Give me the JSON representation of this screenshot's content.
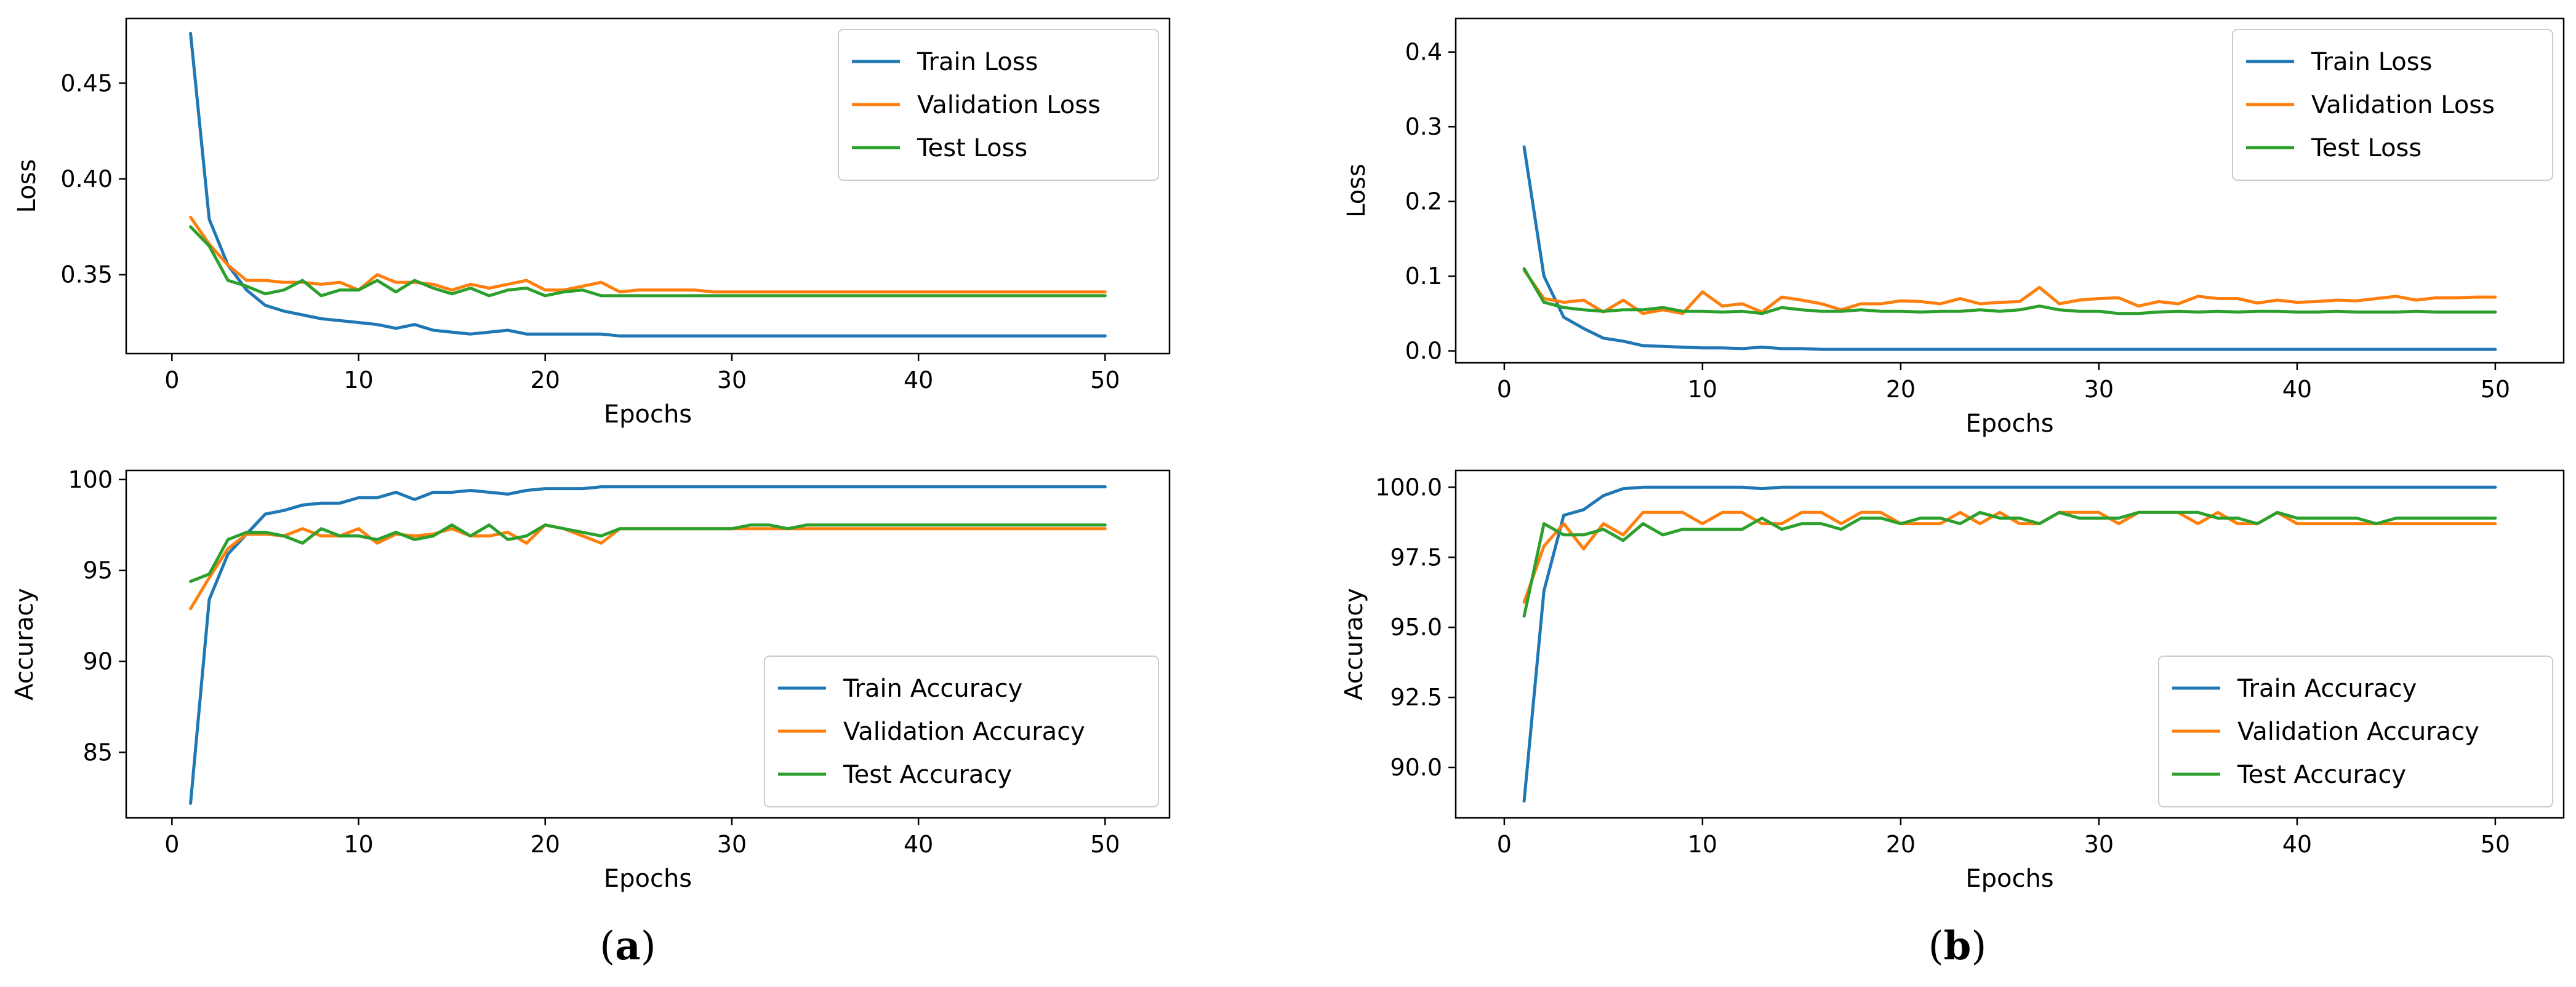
{
  "colors": {
    "train": "#1f77b4",
    "validation": "#ff7f0e",
    "test": "#2ca02c"
  },
  "captions": {
    "a": "a",
    "b": "b"
  },
  "chart_data": [
    {
      "id": "a-loss",
      "type": "line",
      "title": "",
      "xlabel": "Epochs",
      "ylabel": "Loss",
      "xlim": [
        -2.45,
        53.45
      ],
      "ylim": [
        0.3088,
        0.4838
      ],
      "xticks": [
        0,
        10,
        20,
        30,
        40,
        50
      ],
      "yticks": [
        0.35,
        0.4,
        0.45
      ],
      "ytick_labels": [
        "0.35",
        "0.40",
        "0.45"
      ],
      "legend_position": "top-right",
      "x": [
        1,
        2,
        3,
        4,
        5,
        6,
        7,
        8,
        9,
        10,
        11,
        12,
        13,
        14,
        15,
        16,
        17,
        18,
        19,
        20,
        21,
        22,
        23,
        24,
        25,
        26,
        27,
        28,
        29,
        30,
        31,
        32,
        33,
        34,
        35,
        36,
        37,
        38,
        39,
        40,
        41,
        42,
        43,
        44,
        45,
        46,
        47,
        48,
        49,
        50
      ],
      "series": [
        {
          "name": "Train Loss",
          "color_key": "train",
          "values": [
            0.476,
            0.379,
            0.355,
            0.342,
            0.334,
            0.331,
            0.329,
            0.327,
            0.326,
            0.325,
            0.324,
            0.322,
            0.324,
            0.321,
            0.32,
            0.319,
            0.32,
            0.321,
            0.319,
            0.319,
            0.319,
            0.319,
            0.319,
            0.318,
            0.318,
            0.318,
            0.318,
            0.318,
            0.318,
            0.318,
            0.318,
            0.318,
            0.318,
            0.318,
            0.318,
            0.318,
            0.318,
            0.318,
            0.318,
            0.318,
            0.318,
            0.318,
            0.318,
            0.318,
            0.318,
            0.318,
            0.318,
            0.318,
            0.318,
            0.318
          ]
        },
        {
          "name": "Validation Loss",
          "color_key": "validation",
          "values": [
            0.38,
            0.366,
            0.355,
            0.347,
            0.347,
            0.346,
            0.346,
            0.345,
            0.346,
            0.342,
            0.35,
            0.346,
            0.346,
            0.345,
            0.342,
            0.345,
            0.343,
            0.345,
            0.347,
            0.342,
            0.342,
            0.344,
            0.346,
            0.341,
            0.342,
            0.342,
            0.342,
            0.342,
            0.341,
            0.341,
            0.341,
            0.341,
            0.341,
            0.341,
            0.341,
            0.341,
            0.341,
            0.341,
            0.341,
            0.341,
            0.341,
            0.341,
            0.341,
            0.341,
            0.341,
            0.341,
            0.341,
            0.341,
            0.341,
            0.341
          ]
        },
        {
          "name": "Test Loss",
          "color_key": "test",
          "values": [
            0.375,
            0.365,
            0.347,
            0.344,
            0.34,
            0.342,
            0.347,
            0.339,
            0.342,
            0.342,
            0.347,
            0.341,
            0.347,
            0.343,
            0.34,
            0.343,
            0.339,
            0.342,
            0.343,
            0.339,
            0.341,
            0.342,
            0.339,
            0.339,
            0.339,
            0.339,
            0.339,
            0.339,
            0.339,
            0.339,
            0.339,
            0.339,
            0.339,
            0.339,
            0.339,
            0.339,
            0.339,
            0.339,
            0.339,
            0.339,
            0.339,
            0.339,
            0.339,
            0.339,
            0.339,
            0.339,
            0.339,
            0.339,
            0.339,
            0.339
          ]
        }
      ]
    },
    {
      "id": "a-acc",
      "type": "line",
      "title": "",
      "xlabel": "Epochs",
      "ylabel": "Accuracy",
      "xlim": [
        -2.45,
        53.45
      ],
      "ylim": [
        81.4,
        100.5
      ],
      "xticks": [
        0,
        10,
        20,
        30,
        40,
        50
      ],
      "yticks": [
        85,
        90,
        95,
        100
      ],
      "ytick_labels": [
        "85",
        "90",
        "95",
        "100"
      ],
      "legend_position": "bottom-right",
      "x": [
        1,
        2,
        3,
        4,
        5,
        6,
        7,
        8,
        9,
        10,
        11,
        12,
        13,
        14,
        15,
        16,
        17,
        18,
        19,
        20,
        21,
        22,
        23,
        24,
        25,
        26,
        27,
        28,
        29,
        30,
        31,
        32,
        33,
        34,
        35,
        36,
        37,
        38,
        39,
        40,
        41,
        42,
        43,
        44,
        45,
        46,
        47,
        48,
        49,
        50
      ],
      "series": [
        {
          "name": "Train Accuracy",
          "color_key": "train",
          "values": [
            82.2,
            93.4,
            95.9,
            97.0,
            98.1,
            98.3,
            98.6,
            98.7,
            98.7,
            99.0,
            99.0,
            99.3,
            98.9,
            99.3,
            99.3,
            99.4,
            99.3,
            99.2,
            99.4,
            99.5,
            99.5,
            99.5,
            99.6,
            99.6,
            99.6,
            99.6,
            99.6,
            99.6,
            99.6,
            99.6,
            99.6,
            99.6,
            99.6,
            99.6,
            99.6,
            99.6,
            99.6,
            99.6,
            99.6,
            99.6,
            99.6,
            99.6,
            99.6,
            99.6,
            99.6,
            99.6,
            99.6,
            99.6,
            99.6,
            99.6
          ]
        },
        {
          "name": "Validation Accuracy",
          "color_key": "validation",
          "values": [
            92.9,
            94.6,
            96.2,
            97.0,
            97.0,
            96.9,
            97.3,
            96.9,
            96.9,
            97.3,
            96.5,
            97.0,
            96.9,
            97.0,
            97.3,
            96.9,
            96.9,
            97.1,
            96.5,
            97.5,
            97.3,
            96.9,
            96.5,
            97.3,
            97.3,
            97.3,
            97.3,
            97.3,
            97.3,
            97.3,
            97.3,
            97.3,
            97.3,
            97.3,
            97.3,
            97.3,
            97.3,
            97.3,
            97.3,
            97.3,
            97.3,
            97.3,
            97.3,
            97.3,
            97.3,
            97.3,
            97.3,
            97.3,
            97.3,
            97.3
          ]
        },
        {
          "name": "Test Accuracy",
          "color_key": "test",
          "values": [
            94.4,
            94.8,
            96.7,
            97.1,
            97.1,
            96.9,
            96.5,
            97.3,
            96.9,
            96.9,
            96.7,
            97.1,
            96.7,
            96.9,
            97.5,
            96.9,
            97.5,
            96.7,
            96.9,
            97.5,
            97.3,
            97.1,
            96.9,
            97.3,
            97.3,
            97.3,
            97.3,
            97.3,
            97.3,
            97.3,
            97.5,
            97.5,
            97.3,
            97.5,
            97.5,
            97.5,
            97.5,
            97.5,
            97.5,
            97.5,
            97.5,
            97.5,
            97.5,
            97.5,
            97.5,
            97.5,
            97.5,
            97.5,
            97.5,
            97.5
          ]
        }
      ]
    },
    {
      "id": "b-loss",
      "type": "line",
      "title": "",
      "xlabel": "Epochs",
      "ylabel": "Loss",
      "xlim": [
        -2.45,
        53.45
      ],
      "ylim": [
        -0.016,
        0.445
      ],
      "xticks": [
        0,
        10,
        20,
        30,
        40,
        50
      ],
      "yticks": [
        0.0,
        0.1,
        0.2,
        0.3,
        0.4
      ],
      "ytick_labels": [
        "0.0",
        "0.1",
        "0.2",
        "0.3",
        "0.4"
      ],
      "legend_position": "top-right",
      "x": [
        1,
        2,
        3,
        4,
        5,
        6,
        7,
        8,
        9,
        10,
        11,
        12,
        13,
        14,
        15,
        16,
        17,
        18,
        19,
        20,
        21,
        22,
        23,
        24,
        25,
        26,
        27,
        28,
        29,
        30,
        31,
        32,
        33,
        34,
        35,
        36,
        37,
        38,
        39,
        40,
        41,
        42,
        43,
        44,
        45,
        46,
        47,
        48,
        49,
        50
      ],
      "series": [
        {
          "name": "Train Loss",
          "color_key": "train",
          "values": [
            0.273,
            0.1,
            0.045,
            0.03,
            0.017,
            0.013,
            0.007,
            0.006,
            0.005,
            0.004,
            0.004,
            0.003,
            0.005,
            0.003,
            0.003,
            0.002,
            0.002,
            0.002,
            0.002,
            0.002,
            0.002,
            0.002,
            0.002,
            0.002,
            0.002,
            0.002,
            0.002,
            0.002,
            0.002,
            0.002,
            0.002,
            0.002,
            0.002,
            0.002,
            0.002,
            0.002,
            0.002,
            0.002,
            0.002,
            0.002,
            0.002,
            0.002,
            0.002,
            0.002,
            0.002,
            0.002,
            0.002,
            0.002,
            0.002,
            0.002
          ]
        },
        {
          "name": "Validation Loss",
          "color_key": "validation",
          "values": [
            0.108,
            0.07,
            0.065,
            0.068,
            0.052,
            0.068,
            0.05,
            0.055,
            0.05,
            0.079,
            0.06,
            0.063,
            0.052,
            0.072,
            0.068,
            0.063,
            0.055,
            0.063,
            0.063,
            0.067,
            0.066,
            0.063,
            0.07,
            0.063,
            0.065,
            0.066,
            0.085,
            0.063,
            0.068,
            0.07,
            0.071,
            0.06,
            0.066,
            0.063,
            0.073,
            0.07,
            0.07,
            0.064,
            0.068,
            0.065,
            0.066,
            0.068,
            0.067,
            0.07,
            0.073,
            0.068,
            0.071,
            0.071,
            0.072,
            0.072
          ]
        },
        {
          "name": "Test Loss",
          "color_key": "test",
          "values": [
            0.11,
            0.065,
            0.058,
            0.055,
            0.053,
            0.055,
            0.055,
            0.058,
            0.053,
            0.053,
            0.052,
            0.053,
            0.05,
            0.058,
            0.055,
            0.053,
            0.053,
            0.055,
            0.053,
            0.053,
            0.052,
            0.053,
            0.053,
            0.055,
            0.053,
            0.055,
            0.06,
            0.055,
            0.053,
            0.053,
            0.05,
            0.05,
            0.052,
            0.053,
            0.052,
            0.053,
            0.052,
            0.053,
            0.053,
            0.052,
            0.052,
            0.053,
            0.052,
            0.052,
            0.052,
            0.053,
            0.052,
            0.052,
            0.052,
            0.052
          ]
        }
      ]
    },
    {
      "id": "b-acc",
      "type": "line",
      "title": "",
      "xlabel": "Epochs",
      "ylabel": "Accuracy",
      "xlim": [
        -2.45,
        53.45
      ],
      "ylim": [
        88.2,
        100.6
      ],
      "xticks": [
        0,
        10,
        20,
        30,
        40,
        50
      ],
      "yticks": [
        90.0,
        92.5,
        95.0,
        97.5,
        100.0
      ],
      "ytick_labels": [
        "90.0",
        "92.5",
        "95.0",
        "97.5",
        "100.0"
      ],
      "legend_position": "bottom-right",
      "x": [
        1,
        2,
        3,
        4,
        5,
        6,
        7,
        8,
        9,
        10,
        11,
        12,
        13,
        14,
        15,
        16,
        17,
        18,
        19,
        20,
        21,
        22,
        23,
        24,
        25,
        26,
        27,
        28,
        29,
        30,
        31,
        32,
        33,
        34,
        35,
        36,
        37,
        38,
        39,
        40,
        41,
        42,
        43,
        44,
        45,
        46,
        47,
        48,
        49,
        50
      ],
      "series": [
        {
          "name": "Train Accuracy",
          "color_key": "train",
          "values": [
            88.8,
            96.3,
            99.0,
            99.2,
            99.7,
            99.95,
            100,
            100,
            100,
            100,
            100,
            100,
            99.95,
            100,
            100,
            100,
            100,
            100,
            100,
            100,
            100,
            100,
            100,
            100,
            100,
            100,
            100,
            100,
            100,
            100,
            100,
            100,
            100,
            100,
            100,
            100,
            100,
            100,
            100,
            100,
            100,
            100,
            100,
            100,
            100,
            100,
            100,
            100,
            100,
            100
          ]
        },
        {
          "name": "Validation Accuracy",
          "color_key": "validation",
          "values": [
            95.9,
            97.9,
            98.7,
            97.8,
            98.7,
            98.3,
            99.1,
            99.1,
            99.1,
            98.7,
            99.1,
            99.1,
            98.7,
            98.7,
            99.1,
            99.1,
            98.7,
            99.1,
            99.1,
            98.7,
            98.7,
            98.7,
            99.1,
            98.7,
            99.1,
            98.7,
            98.7,
            99.1,
            99.1,
            99.1,
            98.7,
            99.1,
            99.1,
            99.1,
            98.7,
            99.1,
            98.7,
            98.7,
            99.1,
            98.7,
            98.7,
            98.7,
            98.7,
            98.7,
            98.7,
            98.7,
            98.7,
            98.7,
            98.7,
            98.7
          ]
        },
        {
          "name": "Test Accuracy",
          "color_key": "test",
          "values": [
            95.4,
            98.7,
            98.3,
            98.3,
            98.5,
            98.1,
            98.7,
            98.3,
            98.5,
            98.5,
            98.5,
            98.5,
            98.9,
            98.5,
            98.7,
            98.7,
            98.5,
            98.9,
            98.9,
            98.7,
            98.9,
            98.9,
            98.7,
            99.1,
            98.9,
            98.9,
            98.7,
            99.1,
            98.9,
            98.9,
            98.9,
            99.1,
            99.1,
            99.1,
            99.1,
            98.9,
            98.9,
            98.7,
            99.1,
            98.9,
            98.9,
            98.9,
            98.9,
            98.7,
            98.9,
            98.9,
            98.9,
            98.9,
            98.9,
            98.9
          ]
        }
      ]
    }
  ]
}
